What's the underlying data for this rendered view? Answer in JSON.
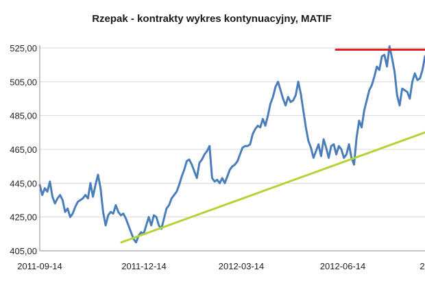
{
  "chart_data": {
    "type": "line",
    "title": "Rzepak - kontrakty wykres kontynuacyjny, MATIF",
    "xlabel": "",
    "ylabel": "",
    "x_tick_labels": [
      "2011-09-14",
      "2011-12-14",
      "2012-03-14",
      "2012-06-14",
      "2"
    ],
    "y_tick_labels": [
      "405,00",
      "425,00",
      "445,00",
      "465,00",
      "485,00",
      "505,00",
      "525,00"
    ],
    "y_tick_values": [
      405,
      425,
      445,
      465,
      485,
      505,
      525
    ],
    "ylim": [
      405,
      525
    ],
    "grid": "horizontal",
    "legend": "none",
    "colors": {
      "price": "#4a7ebb",
      "trend": "#b5d334",
      "resistance": "#e02020",
      "grid": "#d9d9d9",
      "axis": "#8c8c8c"
    },
    "series": [
      {
        "kind": "price",
        "points": [
          [
            0,
            444
          ],
          [
            2,
            438
          ],
          [
            4,
            442
          ],
          [
            6,
            440
          ],
          [
            8,
            446
          ],
          [
            10,
            437
          ],
          [
            12,
            433
          ],
          [
            14,
            436
          ],
          [
            16,
            438
          ],
          [
            18,
            435
          ],
          [
            20,
            428
          ],
          [
            22,
            430
          ],
          [
            24,
            425
          ],
          [
            26,
            427
          ],
          [
            28,
            431
          ],
          [
            30,
            434
          ],
          [
            32,
            435
          ],
          [
            34,
            436
          ],
          [
            36,
            438
          ],
          [
            38,
            436
          ],
          [
            40,
            445
          ],
          [
            42,
            437
          ],
          [
            44,
            444
          ],
          [
            46,
            450
          ],
          [
            48,
            442
          ],
          [
            50,
            428
          ],
          [
            52,
            420
          ],
          [
            54,
            426
          ],
          [
            56,
            428
          ],
          [
            58,
            427
          ],
          [
            60,
            432
          ],
          [
            62,
            428
          ],
          [
            64,
            426
          ],
          [
            66,
            427
          ],
          [
            68,
            424
          ],
          [
            70,
            420
          ],
          [
            72,
            416
          ],
          [
            74,
            412
          ],
          [
            76,
            410
          ],
          [
            78,
            414
          ],
          [
            80,
            416
          ],
          [
            82,
            415
          ],
          [
            84,
            420
          ],
          [
            86,
            425
          ],
          [
            88,
            420
          ],
          [
            90,
            426
          ],
          [
            92,
            425
          ],
          [
            94,
            420
          ],
          [
            96,
            418
          ],
          [
            98,
            424
          ],
          [
            100,
            430
          ],
          [
            102,
            432
          ],
          [
            104,
            436
          ],
          [
            106,
            438
          ],
          [
            108,
            440
          ],
          [
            110,
            444
          ],
          [
            112,
            449
          ],
          [
            114,
            453
          ],
          [
            116,
            458
          ],
          [
            118,
            459
          ],
          [
            120,
            456
          ],
          [
            122,
            452
          ],
          [
            124,
            448
          ],
          [
            126,
            457
          ],
          [
            128,
            459
          ],
          [
            130,
            462
          ],
          [
            132,
            464
          ],
          [
            134,
            467
          ],
          [
            136,
            448
          ],
          [
            138,
            446
          ],
          [
            140,
            447
          ],
          [
            142,
            445
          ],
          [
            144,
            448
          ],
          [
            146,
            445
          ],
          [
            148,
            449
          ],
          [
            150,
            453
          ],
          [
            152,
            455
          ],
          [
            154,
            456
          ],
          [
            156,
            458
          ],
          [
            158,
            462
          ],
          [
            160,
            466
          ],
          [
            162,
            467
          ],
          [
            164,
            467
          ],
          [
            166,
            468
          ],
          [
            168,
            474
          ],
          [
            170,
            477
          ],
          [
            172,
            479
          ],
          [
            174,
            478
          ],
          [
            176,
            483
          ],
          [
            178,
            479
          ],
          [
            180,
            485
          ],
          [
            182,
            492
          ],
          [
            184,
            496
          ],
          [
            186,
            502
          ],
          [
            188,
            505
          ],
          [
            190,
            500
          ],
          [
            192,
            495
          ],
          [
            194,
            491
          ],
          [
            196,
            496
          ],
          [
            198,
            493
          ],
          [
            200,
            494
          ],
          [
            202,
            497
          ],
          [
            204,
            505
          ],
          [
            206,
            498
          ],
          [
            208,
            488
          ],
          [
            210,
            478
          ],
          [
            212,
            470
          ],
          [
            214,
            466
          ],
          [
            216,
            460
          ],
          [
            218,
            464
          ],
          [
            220,
            468
          ],
          [
            222,
            461
          ],
          [
            224,
            471
          ],
          [
            226,
            466
          ],
          [
            228,
            460
          ],
          [
            230,
            467
          ],
          [
            232,
            468
          ],
          [
            234,
            462
          ],
          [
            236,
            467
          ],
          [
            238,
            465
          ],
          [
            240,
            460
          ],
          [
            242,
            462
          ],
          [
            244,
            468
          ],
          [
            246,
            460
          ],
          [
            248,
            456
          ],
          [
            250,
            472
          ],
          [
            252,
            482
          ],
          [
            254,
            478
          ],
          [
            256,
            488
          ],
          [
            258,
            494
          ],
          [
            260,
            500
          ],
          [
            262,
            503
          ],
          [
            264,
            508
          ],
          [
            266,
            514
          ],
          [
            268,
            512
          ],
          [
            270,
            520
          ],
          [
            272,
            521
          ],
          [
            274,
            514
          ],
          [
            276,
            526
          ],
          [
            278,
            519
          ],
          [
            280,
            511
          ],
          [
            282,
            497
          ],
          [
            284,
            491
          ],
          [
            286,
            501
          ],
          [
            288,
            500
          ],
          [
            290,
            499
          ],
          [
            292,
            495
          ],
          [
            294,
            505
          ],
          [
            296,
            510
          ],
          [
            298,
            506
          ],
          [
            300,
            507
          ],
          [
            302,
            512
          ],
          [
            304,
            520
          ]
        ]
      },
      {
        "kind": "trend",
        "points": [
          [
            0,
            410
          ],
          [
            100,
            475
          ]
        ]
      },
      {
        "kind": "resistance",
        "points": [
          [
            0,
            524
          ],
          [
            100,
            524
          ]
        ]
      }
    ]
  }
}
